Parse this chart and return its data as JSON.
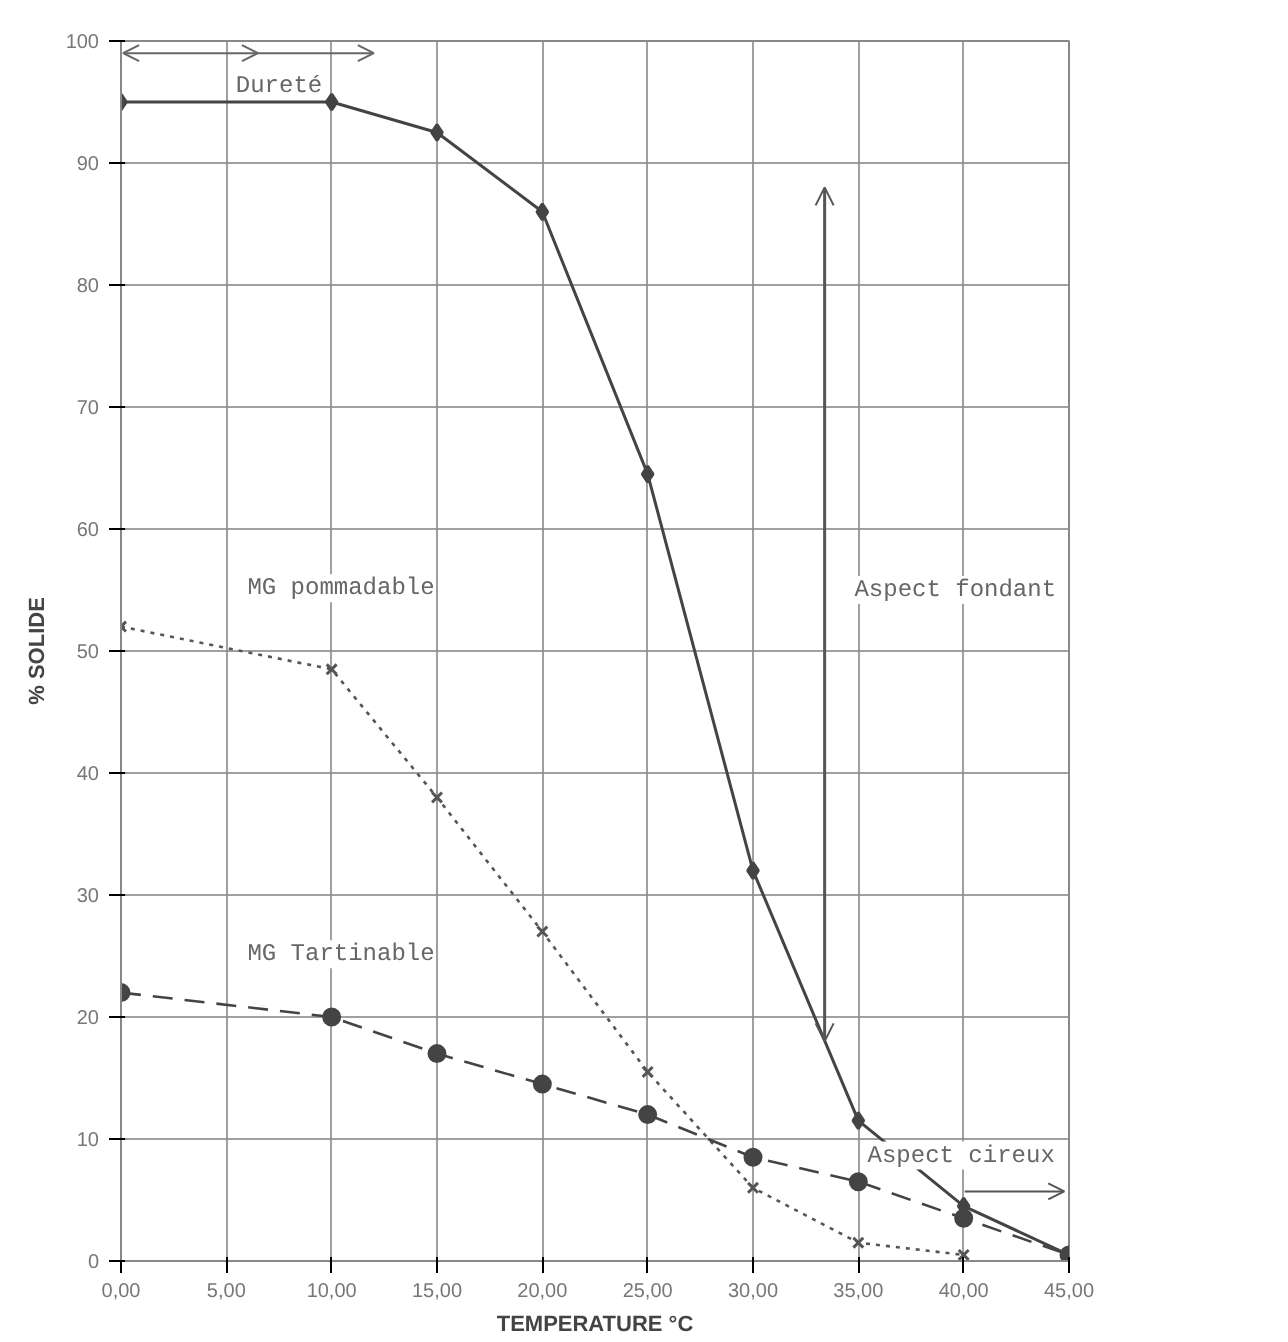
{
  "chart_data": {
    "type": "line",
    "xlabel": "TEMPERATURE °C",
    "ylabel": "% SOLIDE",
    "xlim": [
      0,
      45
    ],
    "ylim": [
      0,
      100
    ],
    "xticks": [
      {
        "value": 0,
        "label": "0,00"
      },
      {
        "value": 5,
        "label": "5,00"
      },
      {
        "value": 10,
        "label": "10,00"
      },
      {
        "value": 15,
        "label": "15,00"
      },
      {
        "value": 20,
        "label": "20,00"
      },
      {
        "value": 25,
        "label": "25,00"
      },
      {
        "value": 30,
        "label": "30,00"
      },
      {
        "value": 35,
        "label": "35,00"
      },
      {
        "value": 40,
        "label": "40,00"
      },
      {
        "value": 45,
        "label": "45,00"
      }
    ],
    "yticks": [
      0,
      10,
      20,
      30,
      40,
      50,
      60,
      70,
      80,
      90,
      100
    ],
    "grid": true,
    "series": [
      {
        "color": "#444444",
        "marker": "diamond",
        "line_style": "solid",
        "x": [
          0,
          10,
          15,
          20,
          25,
          30,
          35,
          40,
          45
        ],
        "values": [
          95,
          95,
          92.5,
          86,
          64.5,
          32,
          11.5,
          4.5,
          0.5
        ]
      },
      {
        "name": "MG pommadable",
        "color": "#555555",
        "marker": "cross",
        "line_style": "dotted",
        "x": [
          0,
          10,
          15,
          20,
          25,
          30,
          35,
          40
        ],
        "values": [
          52,
          48.5,
          38,
          27,
          15.5,
          6,
          1.5,
          0.5
        ]
      },
      {
        "name": "MG Tartinable",
        "color": "#444444",
        "marker": "circle",
        "line_style": "dashed",
        "x": [
          0,
          10,
          15,
          20,
          25,
          30,
          35,
          40,
          45
        ],
        "values": [
          22,
          20,
          17,
          14.5,
          12,
          8.5,
          6.5,
          3.5,
          0.5
        ]
      }
    ],
    "annotations": [
      "Dureté",
      "Aspect fondant",
      "Aspect cireux"
    ]
  }
}
